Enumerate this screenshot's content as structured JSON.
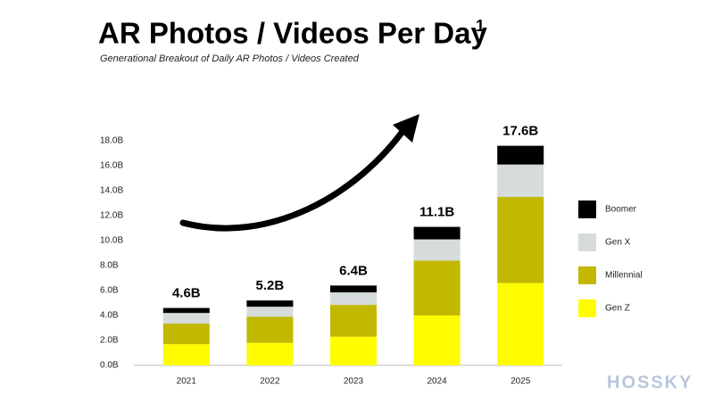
{
  "chart_data": {
    "type": "stacked_bar",
    "title": "AR Photos / Videos Per Day",
    "title_footnote": "1",
    "subtitle": "Generational Breakout of Daily AR Photos / Videos Created",
    "categories": [
      "2021",
      "2022",
      "2023",
      "2024",
      "2025"
    ],
    "series": [
      {
        "name": "Gen Z",
        "color": "#fffc00",
        "values": [
          1.7,
          1.8,
          2.3,
          4.0,
          6.6
        ]
      },
      {
        "name": "Millennial",
        "color": "#c2b800",
        "values": [
          1.65,
          2.1,
          2.55,
          4.4,
          6.9
        ]
      },
      {
        "name": "Gen X",
        "color": "#d5dcdb",
        "values": [
          0.85,
          0.8,
          1.0,
          1.7,
          2.6
        ]
      },
      {
        "name": "Boomer",
        "color": "#000000",
        "values": [
          0.4,
          0.5,
          0.55,
          1.0,
          1.5
        ]
      }
    ],
    "totals": {
      "values": [
        4.6,
        5.2,
        6.4,
        11.1,
        17.6
      ],
      "value_labels": [
        "4.6B",
        "5.2B",
        "6.4B",
        "11.1B",
        "17.6B"
      ]
    },
    "ylim": [
      0,
      18
    ],
    "yticks": [
      {
        "value": 0,
        "label": "0.0B"
      },
      {
        "value": 2,
        "label": "2.0B"
      },
      {
        "value": 4,
        "label": "4.0B"
      },
      {
        "value": 6,
        "label": "6.0B"
      },
      {
        "value": 8,
        "label": "8.0B"
      },
      {
        "value": 10,
        "label": "10.0B"
      },
      {
        "value": 12,
        "label": "12.0B"
      },
      {
        "value": 14,
        "label": "14.0B"
      },
      {
        "value": 16,
        "label": "16.0B"
      },
      {
        "value": 18,
        "label": "18.0B"
      }
    ],
    "grid": false,
    "legend": "right",
    "watermark": "HOSSKY"
  }
}
